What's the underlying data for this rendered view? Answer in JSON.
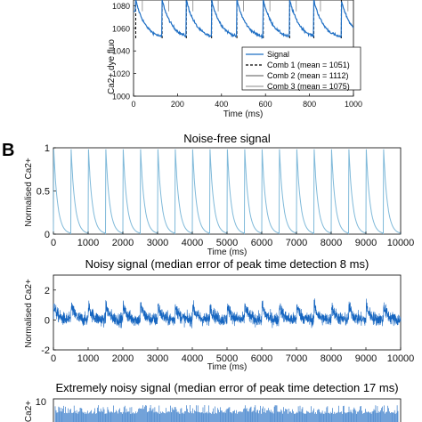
{
  "panel_b_letter": "B",
  "chart_data": [
    {
      "type": "line",
      "panel": "A",
      "xlabel": "Time (ms)",
      "ylabel": "Ca2+ dye fluo",
      "xlim": [
        0,
        1000
      ],
      "ylim": [
        1000,
        1085
      ],
      "xticks": [
        0,
        200,
        400,
        600,
        800,
        1000
      ],
      "yticks": [
        1000,
        1020,
        1040,
        1060,
        1080
      ],
      "legend_position": "bottom-right",
      "series": [
        {
          "name": "Signal",
          "style": "solid",
          "color": "#1f6fc4"
        },
        {
          "name": "Comb 1 (mean = 1051)",
          "style": "dashed",
          "color": "#000000"
        },
        {
          "name": "Comb 2 (mean = 1112)",
          "style": "solid",
          "color": "#555555"
        },
        {
          "name": "Comb 3 (mean = 1075)",
          "style": "solid",
          "color": "#888888"
        }
      ],
      "peak_times_ms": [
        10,
        130,
        240,
        355,
        470,
        590,
        710,
        820,
        945
      ],
      "baseline": 1050,
      "peak": 1085
    },
    {
      "type": "line",
      "panel": "B1",
      "title": "Noise-free signal",
      "xlabel": "Time (ms)",
      "ylabel": "Normalised Ca2+",
      "xlim": [
        0,
        10000
      ],
      "ylim": [
        0,
        1
      ],
      "xticks": [
        0,
        1000,
        2000,
        3000,
        4000,
        5000,
        6000,
        7000,
        8000,
        9000,
        10000
      ],
      "yticks": [
        0,
        0.5,
        1
      ],
      "color": "#7fb9d9",
      "period_ms": 500,
      "first_peak_ms": 0,
      "peak_value": 1,
      "baseline_value": 0
    },
    {
      "type": "line",
      "panel": "B2",
      "title": "Noisy signal (median error of peak time detection 8 ms)",
      "xlabel": "Time (ms)",
      "ylabel": "Normalised Ca2+",
      "xlim": [
        0,
        10000
      ],
      "ylim": [
        -2,
        3
      ],
      "xticks": [
        0,
        1000,
        2000,
        3000,
        4000,
        5000,
        6000,
        7000,
        8000,
        9000,
        10000
      ],
      "yticks": [
        -2,
        0,
        2
      ],
      "color": "#1565c0",
      "period_ms": 500
    },
    {
      "type": "line",
      "panel": "B3",
      "title": "Extremely noisy signal (median error of peak time detection 17 ms)",
      "ylabel": "Ca2+",
      "yticks": [
        10
      ],
      "color": "#1565c0"
    }
  ]
}
